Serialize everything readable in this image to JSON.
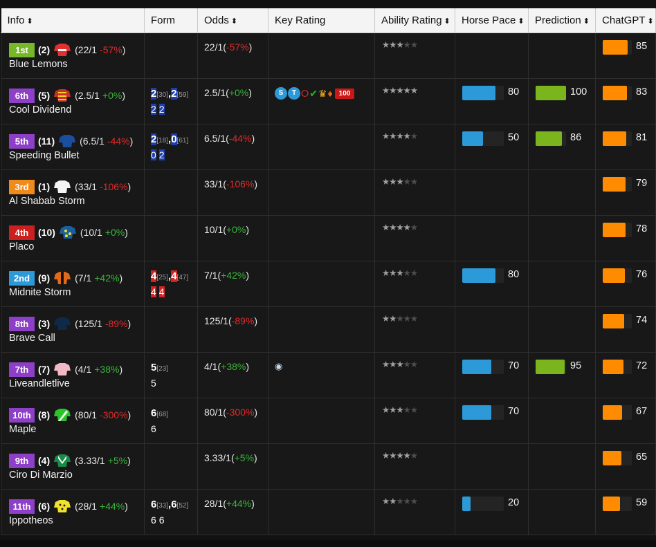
{
  "headers": [
    {
      "label": "Info",
      "sortable": true
    },
    {
      "label": "Form",
      "sortable": false
    },
    {
      "label": "Odds",
      "sortable": true
    },
    {
      "label": "Key Rating",
      "sortable": false
    },
    {
      "label": "Ability Rating",
      "sortable": true
    },
    {
      "label": "Horse Pace",
      "sortable": true
    },
    {
      "label": "Prediction",
      "sortable": true
    },
    {
      "label": "ChatGPT",
      "sortable": true
    }
  ],
  "sort_glyph": "⬍",
  "rows": [
    {
      "finish": "1st",
      "finish_color": "#76b82a",
      "draw": "(2)",
      "odds_open": "(22/1",
      "change": "-57%",
      "change_dir": "neg",
      "odds": "22/1",
      "name": "Blue Lemons",
      "silk": "cap",
      "silk_color": "#e03030",
      "form": [],
      "key": [],
      "stars": 3,
      "pace": null,
      "pred": null,
      "gpt": 85
    },
    {
      "finish": "6th",
      "finish_color": "#8e3fc7",
      "draw": "(5)",
      "odds_open": "(2.5/1",
      "change": "+0%",
      "change_dir": "pos",
      "odds": "2.5/1",
      "name": "Cool Dividend",
      "silk": "stripes",
      "silk_color": "#c83030",
      "form": [
        {
          "a": "2",
          "ar": "[30]",
          "b": "2",
          "br": "[59]",
          "hl": "blue",
          "sub": [
            "2",
            "2"
          ]
        }
      ],
      "key": [
        "S",
        "T",
        "ring",
        "check",
        "crown",
        "fire",
        "100"
      ],
      "stars": 5,
      "pace": 80,
      "pred": 100,
      "gpt": 83
    },
    {
      "finish": "5th",
      "finish_color": "#8e3fc7",
      "draw": "(11)",
      "odds_open": "(6.5/1",
      "change": "-44%",
      "change_dir": "neg",
      "odds": "6.5/1",
      "name": "Speeding Bullet",
      "silk": "shirt",
      "silk_color": "#1a4fa0",
      "form": [
        {
          "a": "2",
          "ar": "[18]",
          "b": "0",
          "br": "[61]",
          "hl": "blue",
          "sub": [
            "0",
            "2"
          ]
        }
      ],
      "key": [],
      "stars": 4,
      "pace": 50,
      "pred": 86,
      "gpt": 81
    },
    {
      "finish": "3rd",
      "finish_color": "#f08a1a",
      "draw": "(1)",
      "odds_open": "(33/1",
      "change": "-106%",
      "change_dir": "neg",
      "odds": "33/1",
      "name": "Al Shabab Storm",
      "silk": "shirt",
      "silk_color": "#f4f4f4",
      "form": [],
      "key": [],
      "stars": 3,
      "pace": null,
      "pred": null,
      "gpt": 79
    },
    {
      "finish": "4th",
      "finish_color": "#cc1f1f",
      "draw": "(10)",
      "odds_open": "(10/1",
      "change": "+0%",
      "change_dir": "pos",
      "odds": "10/1",
      "name": "Placo",
      "silk": "dots",
      "silk_color": "#1a5fa0",
      "form": [],
      "key": [],
      "stars": 4,
      "pace": null,
      "pred": null,
      "gpt": 78
    },
    {
      "finish": "2nd",
      "finish_color": "#2c9ad8",
      "draw": "(9)",
      "odds_open": "(7/1",
      "change": "+42%",
      "change_dir": "pos",
      "odds": "7/1",
      "name": "Midnite Storm",
      "silk": "orange",
      "silk_color": "#e06a1a",
      "form": [
        {
          "a": "4",
          "ar": "[25]",
          "b": "4",
          "br": "[47]",
          "hl": "red",
          "sub": [
            "4",
            "4"
          ]
        }
      ],
      "key": [],
      "stars": 3,
      "pace": 80,
      "pred": null,
      "gpt": 76
    },
    {
      "finish": "8th",
      "finish_color": "#8e3fc7",
      "draw": "(3)",
      "odds_open": "(125/1",
      "change": "-89%",
      "change_dir": "neg",
      "odds": "125/1",
      "name": "Brave Call",
      "silk": "shirt",
      "silk_color": "#0e2a48",
      "form": [],
      "key": [],
      "stars": 2,
      "pace": null,
      "pred": null,
      "gpt": 74
    },
    {
      "finish": "7th",
      "finish_color": "#8e3fc7",
      "draw": "(7)",
      "odds_open": "(4/1",
      "change": "+38%",
      "change_dir": "pos",
      "odds": "4/1",
      "name": "Liveandletlive",
      "silk": "shirt",
      "silk_color": "#f2b8c6",
      "form": [
        {
          "a": "5",
          "ar": "[23]",
          "b": "",
          "br": "",
          "hl": "none",
          "sub": [
            "5"
          ]
        }
      ],
      "key": [
        "eye"
      ],
      "stars": 3,
      "pace": 70,
      "pred": 95,
      "gpt": 72
    },
    {
      "finish": "10th",
      "finish_color": "#8e3fc7",
      "draw": "(8)",
      "odds_open": "(80/1",
      "change": "-300%",
      "change_dir": "neg",
      "odds": "80/1",
      "name": "Maple",
      "silk": "sash",
      "silk_color": "#2ac42a",
      "form": [
        {
          "a": "6",
          "ar": "[68]",
          "b": "",
          "br": "",
          "hl": "none",
          "sub": [
            "6"
          ]
        }
      ],
      "key": [],
      "stars": 3,
      "pace": 70,
      "pred": null,
      "gpt": 67
    },
    {
      "finish": "9th",
      "finish_color": "#8e3fc7",
      "draw": "(4)",
      "odds_open": "(3.33/1",
      "change": "+5%",
      "change_dir": "pos",
      "odds": "3.33/1",
      "name": "Ciro Di Marzio",
      "silk": "vee",
      "silk_color": "#1a8a4a",
      "form": [],
      "key": [],
      "stars": 4,
      "pace": null,
      "pred": null,
      "gpt": 65
    },
    {
      "finish": "11th",
      "finish_color": "#8e3fc7",
      "draw": "(6)",
      "odds_open": "(28/1",
      "change": "+44%",
      "change_dir": "pos",
      "odds": "28/1",
      "name": "Ippotheos",
      "silk": "shirt",
      "silk_color": "#f2e22a",
      "form": [
        {
          "a": "6",
          "ar": "[33]",
          "b": "6",
          "br": "[52]",
          "hl": "none",
          "sub": [
            "6",
            "6"
          ]
        }
      ],
      "key": [],
      "stars": 2,
      "pace": 20,
      "pred": null,
      "gpt": 59
    }
  ],
  "colors": {
    "pace": "#2c9ad8",
    "prediction": "#7ab51e",
    "chatgpt": "#ff8c00",
    "track": "#242424"
  }
}
